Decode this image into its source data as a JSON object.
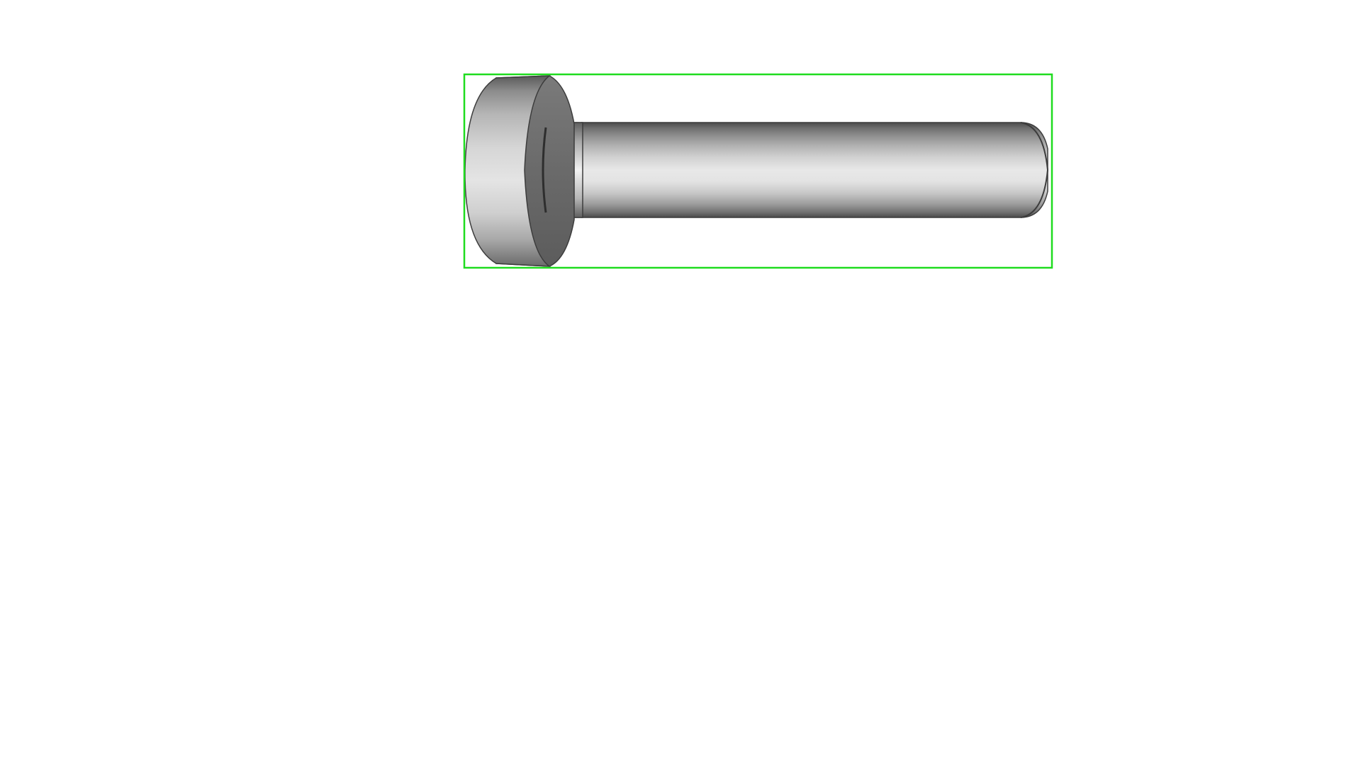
{
  "scene": {
    "background_color": "#ffffff",
    "object": {
      "kind": "pan-head screw",
      "shaded": true,
      "colors": {
        "light": "#ececec",
        "mid": "#b8b8b8",
        "dark": "#6e6e6e",
        "edge": "#4a4a4a"
      }
    },
    "bounding_box": {
      "visible": true,
      "color": "#1fdc1f"
    }
  }
}
